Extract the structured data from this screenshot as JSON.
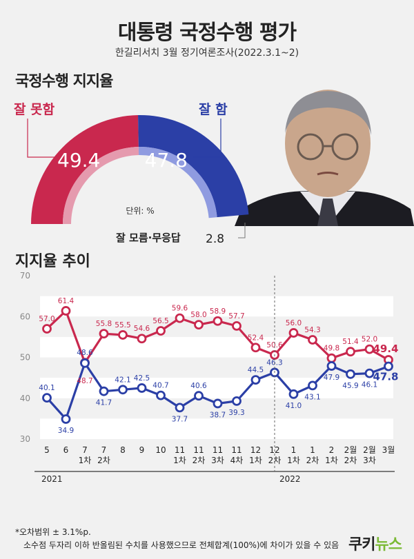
{
  "header": {
    "title": "대통령 국정수행 평가",
    "subtitle": "한길리서치 3월 정기여론조사(2022.3.1~2)"
  },
  "approval": {
    "section_title": "국정수행 지지율",
    "negative_label": "잘 못함",
    "negative_value": "49.4",
    "positive_label": "잘 함",
    "positive_value": "47.8",
    "unknown_label": "잘 모름·무응답",
    "unknown_value": "2.8",
    "unit_label": "단위: %"
  },
  "trend": {
    "section_title": "지지율 추이"
  },
  "colors": {
    "negative": "#c9284e",
    "positive": "#2b3fa6",
    "background": "#f1f1f1"
  },
  "chart_data": [
    {
      "type": "pie",
      "categories": [
        "잘 못함",
        "잘 함",
        "잘 모름·무응답"
      ],
      "values": [
        49.4,
        47.8,
        2.8
      ]
    },
    {
      "type": "line",
      "categories": [
        "5",
        "6",
        "7 1차",
        "7 2차",
        "8",
        "9",
        "10",
        "11 1차",
        "11 2차",
        "11 3차",
        "11 4차",
        "12 1차",
        "12 2차",
        "1 1차",
        "1 2차",
        "2 1차",
        "2 2차",
        "2 3차",
        "3월"
      ],
      "tick_lines": [
        [
          "5"
        ],
        [
          "6"
        ],
        [
          "7",
          "1차"
        ],
        [
          "7",
          "2차"
        ],
        [
          "8"
        ],
        [
          "9"
        ],
        [
          "10"
        ],
        [
          "11",
          "1차"
        ],
        [
          "11",
          "2차"
        ],
        [
          "11",
          "3차"
        ],
        [
          "11",
          "4차"
        ],
        [
          "12",
          "1차"
        ],
        [
          "12",
          "2차"
        ],
        [
          "1",
          "1차"
        ],
        [
          "1",
          "2차"
        ],
        [
          "2",
          "1차"
        ],
        [
          "2월",
          "2차"
        ],
        [
          "2월",
          "3차"
        ],
        [
          "3월"
        ]
      ],
      "series": [
        {
          "name": "잘 못함",
          "values": [
            57.0,
            61.4,
            48.7,
            55.8,
            55.5,
            54.6,
            56.5,
            59.6,
            58.0,
            58.9,
            57.7,
            52.4,
            50.6,
            56.0,
            54.3,
            49.8,
            51.4,
            52.0,
            49.4
          ]
        },
        {
          "name": "잘 함",
          "values": [
            40.1,
            34.9,
            48.6,
            41.7,
            42.1,
            42.5,
            40.7,
            37.7,
            40.6,
            38.7,
            39.3,
            44.5,
            46.3,
            41.0,
            43.1,
            47.9,
            45.9,
            46.1,
            47.8
          ]
        }
      ],
      "ylim": [
        30,
        70
      ],
      "yticks": [
        30,
        40,
        50,
        60,
        70
      ],
      "years": [
        "2021",
        "2022"
      ]
    }
  ],
  "footnote": {
    "line1": "*오차범위 ± 3.1%p.",
    "line2": "소수점 두자리 이하 반올림된 수치를 사용했으므로 전체합계(100%)에 차이가 있을 수 있음"
  },
  "logo": {
    "text1": "쿠키",
    "text2": "뉴스"
  }
}
